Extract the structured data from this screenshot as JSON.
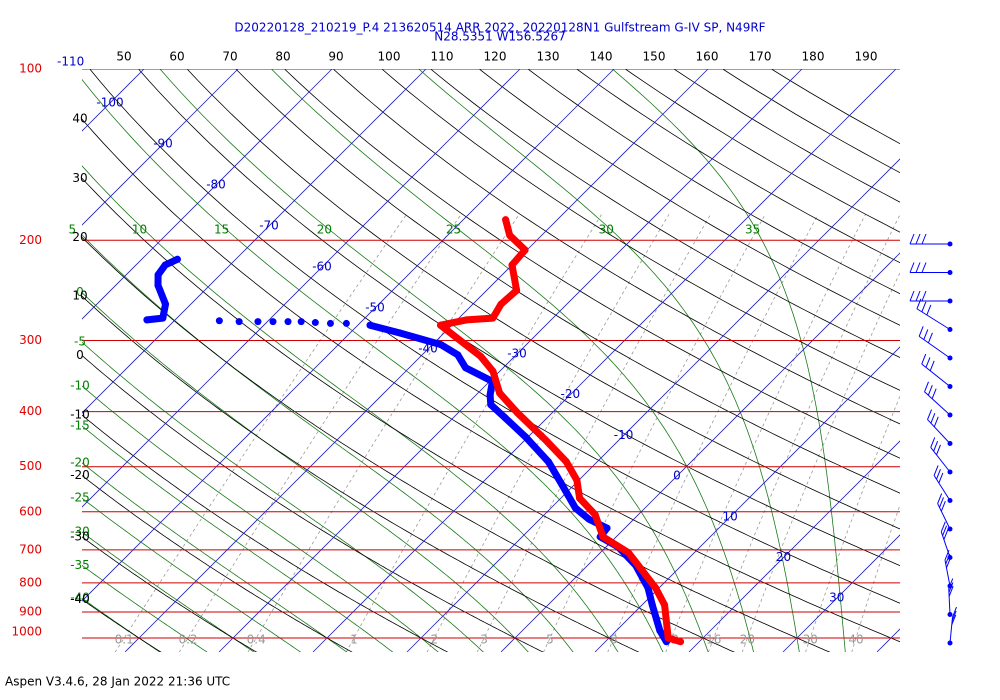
{
  "title": [
    "D20220128_210219_P.4 213620514 ARR 2022, 20220128N1 Gulfstream G-IV SP, N49RF",
    "N28.5351 W156.5267"
  ],
  "pressure_labels": [
    100,
    200,
    300,
    400,
    500,
    600,
    700,
    800,
    900,
    1000
  ],
  "isotherm_labels": [
    -110,
    -100,
    -90,
    -80,
    -70,
    -60,
    -50,
    -40,
    -30,
    -20,
    -10,
    0,
    10,
    20,
    30
  ],
  "dry_adiabat_labels_top": [
    50,
    60,
    70,
    80,
    90,
    100,
    110,
    120,
    130,
    140,
    150,
    160,
    170,
    180,
    190
  ],
  "dry_adiabat_labels_left": [
    40,
    30,
    20,
    10,
    0,
    -10,
    -20,
    -30,
    -40
  ],
  "moist_adiabat_labels_top": [
    5,
    10,
    15,
    20,
    25,
    30,
    35
  ],
  "moist_adiabat_labels_left": [
    0,
    -5,
    -10,
    -15,
    -20,
    -25,
    -30,
    -35,
    -40
  ],
  "mixing_ratio_labels": [
    0.1,
    0.2,
    0.4,
    1,
    2,
    3,
    5,
    8,
    12,
    16,
    20,
    30,
    40
  ],
  "profiles": {
    "temperature": {
      "pressure": [
        1015,
        1000,
        875,
        816,
        708,
        664,
        607,
        568,
        528,
        490,
        448,
        402,
        371,
        340,
        320,
        282,
        276,
        274,
        259,
        245,
        221,
        208,
        196,
        184
      ],
      "values": [
        18.0,
        16.3,
        12.4,
        9.6,
        3.0,
        -1.4,
        -4.6,
        -8.0,
        -10.2,
        -13.3,
        -17.9,
        -23.7,
        -27.7,
        -30.7,
        -33.6,
        -41.2,
        -39.0,
        -36.4,
        -37.0,
        -36.8,
        -40.0,
        -40.2,
        -43.4,
        -45.5
      ]
    },
    "dewpoint": {
      "pressure": [
        1015,
        970,
        875,
        816,
        745,
        692,
        664,
        641,
        618,
        591,
        538,
        490,
        443,
        410,
        389,
        374,
        354,
        335,
        318,
        305,
        291,
        282,
        null,
        280,
        null,
        280,
        null,
        279,
        null,
        278,
        null,
        278,
        null,
        278,
        null,
        278,
        null,
        278,
        null,
        277,
        null,
        276,
        274,
        259,
        240,
        230,
        221,
        216
      ],
      "values": [
        16.5,
        14.6,
        11.1,
        8.8,
        5.1,
        1.3,
        -1.7,
        -1.9,
        -4.8,
        -7.4,
        -11.3,
        -15.2,
        -20.3,
        -24.5,
        -27.4,
        -28.5,
        -29.7,
        -34.0,
        -36.2,
        -39.1,
        -44.7,
        -48.7,
        null,
        -51.4,
        null,
        -53.1,
        null,
        -54.8,
        null,
        -56.4,
        null,
        -57.8,
        null,
        -59.4,
        null,
        -61.0,
        null,
        -63.0,
        null,
        -65.2,
        null,
        -73.0,
        -71.5,
        -72.7,
        -75.5,
        -76.6,
        -76.9,
        -76.2
      ]
    }
  },
  "footer": "Aspen V3.4.6, 28 Jan 2022  21:36 UTC"
}
